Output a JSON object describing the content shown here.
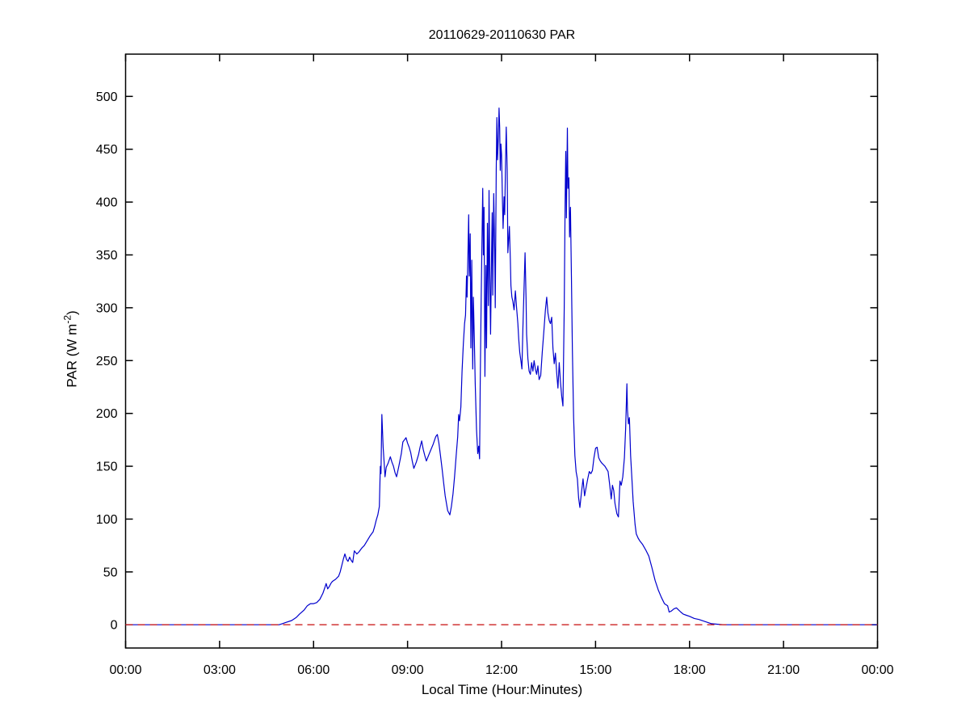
{
  "figure": {
    "background_color": "#ffffff",
    "axis_color": "#000000"
  },
  "chart_data": {
    "type": "line",
    "title": "20110629-20110630 PAR",
    "xlabel": "Local Time (Hour:Minutes)",
    "ylabel": "PAR (W m-2)",
    "ylabel_parts": {
      "prefix": "PAR (W m",
      "superscript": "-2",
      "suffix": ")"
    },
    "grid": false,
    "legend": null,
    "xlim_hours": [
      0,
      24
    ],
    "ylim": [
      -22,
      540
    ],
    "x_ticks_hours": [
      0,
      3,
      6,
      9,
      12,
      15,
      18,
      21,
      24
    ],
    "x_tick_labels": [
      "00:00",
      "03:00",
      "06:00",
      "09:00",
      "12:00",
      "15:00",
      "18:00",
      "21:00",
      "00:00"
    ],
    "y_ticks": [
      0,
      50,
      100,
      150,
      200,
      250,
      300,
      350,
      400,
      450,
      500
    ],
    "series": [
      {
        "name": "PAR",
        "color": "#0000CD",
        "style": "solid",
        "points": [
          [
            0,
            0
          ],
          [
            0.5,
            0
          ],
          [
            1,
            0
          ],
          [
            1.5,
            0
          ],
          [
            2,
            0
          ],
          [
            2.5,
            0
          ],
          [
            3,
            0
          ],
          [
            3.5,
            0
          ],
          [
            4,
            0
          ],
          [
            4.5,
            0
          ],
          [
            4.8,
            0
          ],
          [
            4.9,
            0
          ],
          [
            5.0,
            1
          ],
          [
            5.1,
            2
          ],
          [
            5.3,
            4
          ],
          [
            5.45,
            7
          ],
          [
            5.55,
            10
          ],
          [
            5.7,
            14
          ],
          [
            5.8,
            18
          ],
          [
            5.9,
            20
          ],
          [
            6.0,
            20
          ],
          [
            6.1,
            21
          ],
          [
            6.2,
            24
          ],
          [
            6.3,
            30
          ],
          [
            6.37,
            36
          ],
          [
            6.4,
            39
          ],
          [
            6.45,
            34
          ],
          [
            6.5,
            36
          ],
          [
            6.55,
            39
          ],
          [
            6.6,
            41
          ],
          [
            6.7,
            43
          ],
          [
            6.8,
            46
          ],
          [
            6.85,
            50
          ],
          [
            6.95,
            62
          ],
          [
            7.0,
            67
          ],
          [
            7.05,
            62
          ],
          [
            7.1,
            60
          ],
          [
            7.15,
            64
          ],
          [
            7.2,
            61
          ],
          [
            7.25,
            59
          ],
          [
            7.3,
            70
          ],
          [
            7.38,
            67
          ],
          [
            7.45,
            69
          ],
          [
            7.5,
            71
          ],
          [
            7.55,
            73
          ],
          [
            7.62,
            75
          ],
          [
            7.7,
            79
          ],
          [
            7.8,
            84
          ],
          [
            7.9,
            88
          ],
          [
            7.95,
            93
          ],
          [
            8.0,
            99
          ],
          [
            8.05,
            104
          ],
          [
            8.1,
            112
          ],
          [
            8.13,
            150
          ],
          [
            8.15,
            143
          ],
          [
            8.18,
            199
          ],
          [
            8.22,
            168
          ],
          [
            8.25,
            155
          ],
          [
            8.28,
            140
          ],
          [
            8.32,
            149
          ],
          [
            8.38,
            153
          ],
          [
            8.45,
            159
          ],
          [
            8.5,
            154
          ],
          [
            8.55,
            150
          ],
          [
            8.6,
            144
          ],
          [
            8.65,
            140
          ],
          [
            8.72,
            150
          ],
          [
            8.8,
            162
          ],
          [
            8.85,
            173
          ],
          [
            8.95,
            177
          ],
          [
            9.0,
            172
          ],
          [
            9.05,
            168
          ],
          [
            9.1,
            163
          ],
          [
            9.15,
            155
          ],
          [
            9.2,
            148
          ],
          [
            9.28,
            154
          ],
          [
            9.35,
            161
          ],
          [
            9.4,
            168
          ],
          [
            9.45,
            174
          ],
          [
            9.5,
            166
          ],
          [
            9.55,
            160
          ],
          [
            9.6,
            155
          ],
          [
            9.68,
            161
          ],
          [
            9.75,
            166
          ],
          [
            9.82,
            171
          ],
          [
            9.9,
            178
          ],
          [
            9.95,
            180
          ],
          [
            10.0,
            172
          ],
          [
            10.05,
            160
          ],
          [
            10.1,
            148
          ],
          [
            10.15,
            135
          ],
          [
            10.2,
            122
          ],
          [
            10.28,
            108
          ],
          [
            10.35,
            104
          ],
          [
            10.4,
            112
          ],
          [
            10.45,
            124
          ],
          [
            10.5,
            140
          ],
          [
            10.55,
            160
          ],
          [
            10.6,
            178
          ],
          [
            10.63,
            199
          ],
          [
            10.66,
            193
          ],
          [
            10.7,
            206
          ],
          [
            10.74,
            240
          ],
          [
            10.78,
            266
          ],
          [
            10.82,
            285
          ],
          [
            10.85,
            293
          ],
          [
            10.88,
            330
          ],
          [
            10.9,
            310
          ],
          [
            10.93,
            355
          ],
          [
            10.95,
            388
          ],
          [
            10.97,
            330
          ],
          [
            11.0,
            370
          ],
          [
            11.02,
            262
          ],
          [
            11.05,
            345
          ],
          [
            11.08,
            242
          ],
          [
            11.1,
            310
          ],
          [
            11.13,
            270
          ],
          [
            11.16,
            228
          ],
          [
            11.2,
            185
          ],
          [
            11.24,
            162
          ],
          [
            11.27,
            169
          ],
          [
            11.3,
            157
          ],
          [
            11.32,
            230
          ],
          [
            11.35,
            310
          ],
          [
            11.38,
            370
          ],
          [
            11.4,
            413
          ],
          [
            11.42,
            350
          ],
          [
            11.44,
            395
          ],
          [
            11.47,
            235
          ],
          [
            11.5,
            340
          ],
          [
            11.52,
            262
          ],
          [
            11.55,
            380
          ],
          [
            11.58,
            302
          ],
          [
            11.6,
            411
          ],
          [
            11.62,
            342
          ],
          [
            11.65,
            275
          ],
          [
            11.68,
            350
          ],
          [
            11.7,
            390
          ],
          [
            11.72,
            312
          ],
          [
            11.75,
            408
          ],
          [
            11.78,
            355
          ],
          [
            11.8,
            300
          ],
          [
            11.83,
            430
          ],
          [
            11.85,
            480
          ],
          [
            11.87,
            440
          ],
          [
            11.9,
            462
          ],
          [
            11.92,
            489
          ],
          [
            11.94,
            470
          ],
          [
            11.96,
            430
          ],
          [
            11.98,
            455
          ],
          [
            12.0,
            445
          ],
          [
            12.03,
            398
          ],
          [
            12.05,
            375
          ],
          [
            12.08,
            405
          ],
          [
            12.1,
            388
          ],
          [
            12.13,
            440
          ],
          [
            12.15,
            471
          ],
          [
            12.18,
            430
          ],
          [
            12.2,
            352
          ],
          [
            12.23,
            366
          ],
          [
            12.25,
            377
          ],
          [
            12.28,
            345
          ],
          [
            12.3,
            321
          ],
          [
            12.33,
            310
          ],
          [
            12.36,
            306
          ],
          [
            12.4,
            298
          ],
          [
            12.44,
            316
          ],
          [
            12.48,
            300
          ],
          [
            12.52,
            285
          ],
          [
            12.55,
            270
          ],
          [
            12.58,
            258
          ],
          [
            12.62,
            249
          ],
          [
            12.65,
            242
          ],
          [
            12.68,
            280
          ],
          [
            12.72,
            320
          ],
          [
            12.75,
            352
          ],
          [
            12.78,
            310
          ],
          [
            12.8,
            275
          ],
          [
            12.84,
            252
          ],
          [
            12.88,
            240
          ],
          [
            12.92,
            237
          ],
          [
            12.96,
            248
          ],
          [
            13.0,
            240
          ],
          [
            13.04,
            250
          ],
          [
            13.08,
            242
          ],
          [
            13.12,
            237
          ],
          [
            13.16,
            245
          ],
          [
            13.2,
            232
          ],
          [
            13.25,
            236
          ],
          [
            13.3,
            258
          ],
          [
            13.35,
            278
          ],
          [
            13.4,
            298
          ],
          [
            13.44,
            310
          ],
          [
            13.48,
            295
          ],
          [
            13.52,
            288
          ],
          [
            13.56,
            285
          ],
          [
            13.6,
            291
          ],
          [
            13.64,
            262
          ],
          [
            13.68,
            247
          ],
          [
            13.72,
            257
          ],
          [
            13.76,
            238
          ],
          [
            13.8,
            224
          ],
          [
            13.84,
            248
          ],
          [
            13.88,
            230
          ],
          [
            13.92,
            216
          ],
          [
            13.96,
            207
          ],
          [
            14.0,
            300
          ],
          [
            14.03,
            400
          ],
          [
            14.05,
            448
          ],
          [
            14.07,
            385
          ],
          [
            14.1,
            470
          ],
          [
            14.12,
            413
          ],
          [
            14.15,
            423
          ],
          [
            14.17,
            367
          ],
          [
            14.2,
            395
          ],
          [
            14.23,
            330
          ],
          [
            14.26,
            260
          ],
          [
            14.3,
            196
          ],
          [
            14.34,
            160
          ],
          [
            14.38,
            145
          ],
          [
            14.42,
            138
          ],
          [
            14.46,
            120
          ],
          [
            14.5,
            111
          ],
          [
            14.55,
            125
          ],
          [
            14.6,
            138
          ],
          [
            14.65,
            122
          ],
          [
            14.7,
            130
          ],
          [
            14.75,
            138
          ],
          [
            14.8,
            145
          ],
          [
            14.85,
            143
          ],
          [
            14.9,
            146
          ],
          [
            14.95,
            158
          ],
          [
            15.0,
            167
          ],
          [
            15.05,
            168
          ],
          [
            15.1,
            158
          ],
          [
            15.15,
            155
          ],
          [
            15.2,
            153
          ],
          [
            15.3,
            150
          ],
          [
            15.4,
            145
          ],
          [
            15.45,
            133
          ],
          [
            15.5,
            119
          ],
          [
            15.54,
            132
          ],
          [
            15.58,
            127
          ],
          [
            15.62,
            115
          ],
          [
            15.68,
            105
          ],
          [
            15.73,
            102
          ],
          [
            15.78,
            136
          ],
          [
            15.82,
            132
          ],
          [
            15.87,
            140
          ],
          [
            15.92,
            158
          ],
          [
            15.96,
            185
          ],
          [
            16.0,
            228
          ],
          [
            16.02,
            203
          ],
          [
            16.05,
            190
          ],
          [
            16.08,
            196
          ],
          [
            16.12,
            160
          ],
          [
            16.16,
            138
          ],
          [
            16.2,
            117
          ],
          [
            16.26,
            95
          ],
          [
            16.3,
            86
          ],
          [
            16.36,
            82
          ],
          [
            16.42,
            79
          ],
          [
            16.5,
            76
          ],
          [
            16.6,
            71
          ],
          [
            16.7,
            65
          ],
          [
            16.8,
            54
          ],
          [
            16.9,
            42
          ],
          [
            17.0,
            33
          ],
          [
            17.1,
            26
          ],
          [
            17.2,
            20
          ],
          [
            17.3,
            18
          ],
          [
            17.35,
            12
          ],
          [
            17.42,
            13
          ],
          [
            17.5,
            15
          ],
          [
            17.58,
            16
          ],
          [
            17.65,
            14
          ],
          [
            17.72,
            12
          ],
          [
            17.8,
            10
          ],
          [
            17.9,
            9
          ],
          [
            18.0,
            8
          ],
          [
            18.15,
            6
          ],
          [
            18.3,
            5
          ],
          [
            18.5,
            3
          ],
          [
            18.7,
            1
          ],
          [
            18.9,
            0.5
          ],
          [
            19.1,
            0
          ],
          [
            19.5,
            0
          ],
          [
            20,
            0
          ],
          [
            20.5,
            0
          ],
          [
            21,
            0
          ],
          [
            21.5,
            0
          ],
          [
            22,
            0
          ],
          [
            22.5,
            0
          ],
          [
            23,
            0
          ],
          [
            23.5,
            0
          ],
          [
            24,
            0
          ]
        ]
      },
      {
        "name": "zero-reference",
        "color": "#CC2222",
        "style": "dashed",
        "points": [
          [
            0,
            0
          ],
          [
            24,
            0
          ]
        ]
      }
    ]
  }
}
